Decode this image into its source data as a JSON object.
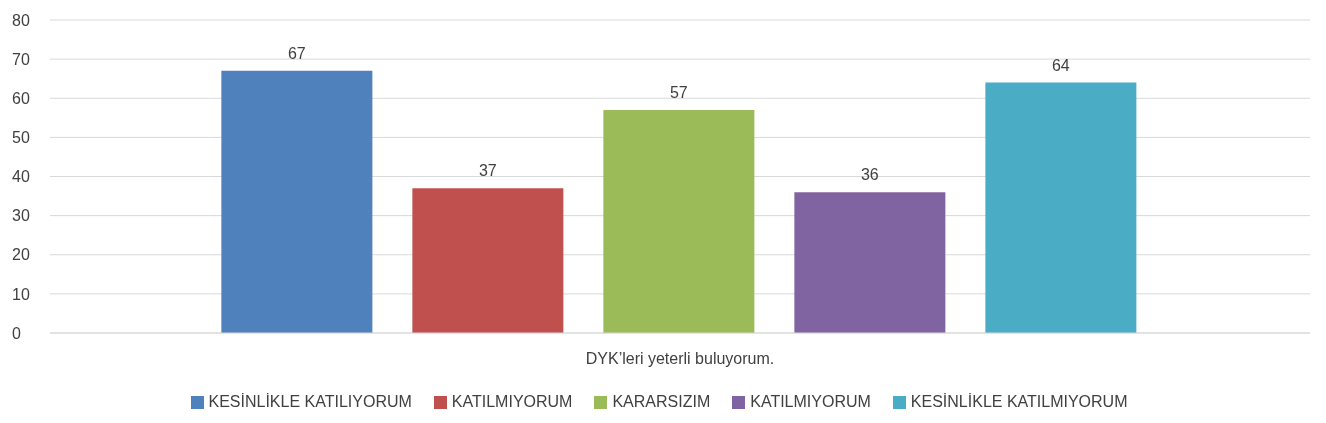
{
  "chart_data": {
    "type": "bar",
    "categories": [
      "DYK’leri yeterli buluyorum."
    ],
    "series": [
      {
        "name": "KESİNLİKLE KATILIYORUM",
        "color": "#4f81bd",
        "values": [
          67
        ]
      },
      {
        "name": "KATILMIYORUM",
        "color": "#c0504d",
        "values": [
          37
        ]
      },
      {
        "name": "KARARSIZIM",
        "color": "#9bbb59",
        "values": [
          57
        ]
      },
      {
        "name": "KATILMIYORUM",
        "color": "#8064a2",
        "values": [
          36
        ]
      },
      {
        "name": "KESİNLİKLE KATILMIYORUM",
        "color": "#4bacc6",
        "values": [
          64
        ]
      }
    ],
    "ylim": [
      0,
      80
    ],
    "yticks": [
      0,
      10,
      20,
      30,
      40,
      50,
      60,
      70,
      80
    ],
    "grid": "y",
    "legend": "bottom",
    "data_labels": true
  }
}
